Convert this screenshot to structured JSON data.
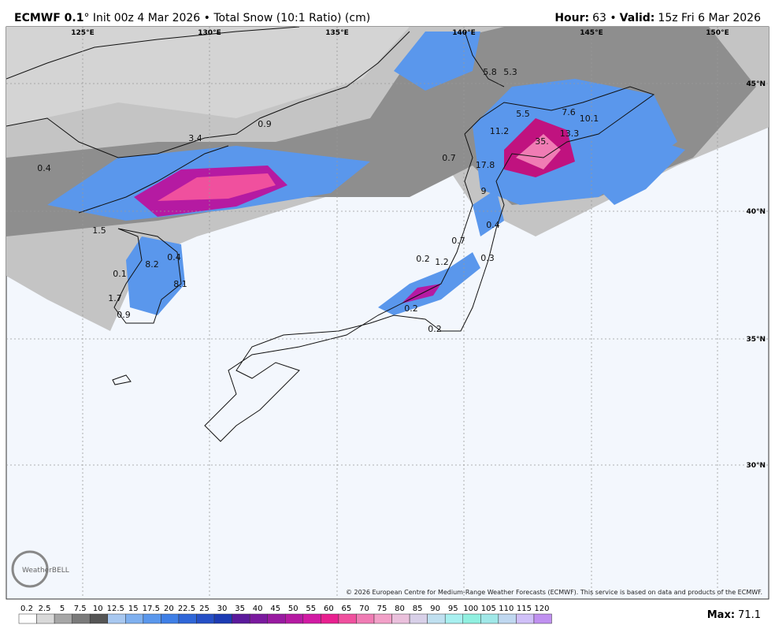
{
  "header": {
    "model": "ECMWF 0.1",
    "description": "° Init 00z 4 Mar 2026 • Total Snow (10:1 Ratio) (cm)",
    "hour_label": "Hour:",
    "hour": "63 •",
    "valid_label": "Valid:",
    "valid": "15z Fri 6 Mar 2026"
  },
  "map": {
    "longitudes": [
      "125°E",
      "130°E",
      "135°E",
      "140°E",
      "145°E",
      "150°E"
    ],
    "latitudes": [
      "45°N",
      "40°N",
      "35°N",
      "30°N"
    ],
    "point_labels": [
      "5.8",
      "5.3",
      "5.5",
      "7.6",
      "10.1",
      "11.2",
      "35.",
      "13.3",
      "0.9",
      "3.4",
      "0.4",
      "0.7",
      "17.8",
      "9",
      "0.4",
      "1.5",
      "0.7",
      "0.4",
      "0.3",
      "0.2",
      "1.2",
      "8.2",
      "0.1",
      "8.1",
      "1.7",
      "0.9",
      "0.2",
      "0.2"
    ],
    "logo": "WeatherBELL",
    "copyright": "© 2026 European Centre for Medium-Range Weather Forecasts (ECMWF). This service is based on data and products of the ECMWF."
  },
  "legend": {
    "labels": [
      "0.2",
      "2.5",
      "5",
      "7.5",
      "10",
      "12.5",
      "15",
      "17.5",
      "20",
      "22.5",
      "25",
      "30",
      "35",
      "40",
      "45",
      "50",
      "55",
      "60",
      "65",
      "70",
      "75",
      "80",
      "85",
      "90",
      "95",
      "100",
      "105",
      "110",
      "115",
      "120"
    ],
    "colors": [
      "#ffffff",
      "#d9d9d9",
      "#a6a6a6",
      "#7a7a7a",
      "#555555",
      "#a8c8f0",
      "#7fb0ef",
      "#5a97ec",
      "#3f7fe6",
      "#2f66d8",
      "#254fc6",
      "#1c3bb3",
      "#5b1a9b",
      "#7a1a9e",
      "#981aa0",
      "#b51aa2",
      "#d11aa3",
      "#e8208f",
      "#f0509e",
      "#f07cb4",
      "#f2a0c8",
      "#eac0dc",
      "#d8d0e8",
      "#c0e0f0",
      "#a8f0f0",
      "#90f0e0",
      "#a0e8e8",
      "#c0d8f0",
      "#d0c0f8",
      "#c090f0"
    ],
    "max_label": "Max:",
    "max": "71.1"
  }
}
